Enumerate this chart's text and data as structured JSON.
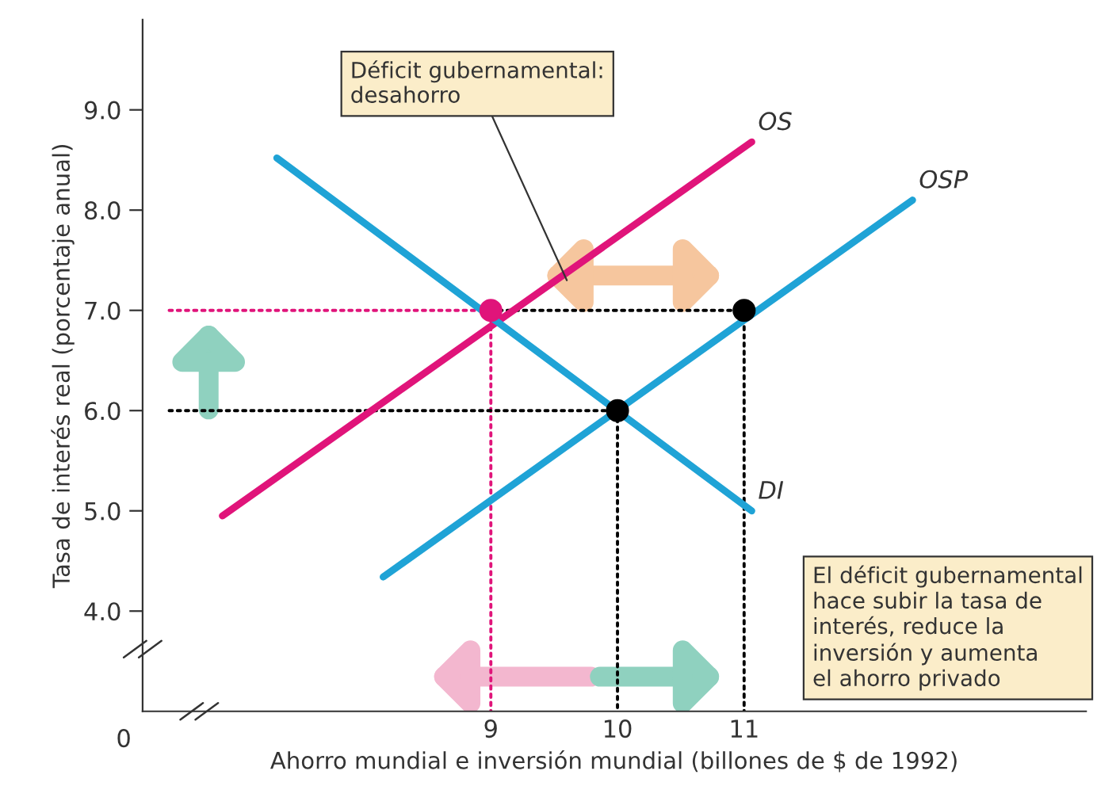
{
  "chart_data": {
    "type": "line",
    "xlabel": "Ahorro mundial e inversión mundial (billones de $ de 1992)",
    "ylabel": "Tasa de interés real (porcentaje anual)",
    "xlim": [
      6.25,
      13.7
    ],
    "ylim": [
      3.0,
      9.9
    ],
    "xticks": [
      9,
      10,
      11
    ],
    "yticks": [
      {
        "value": 4,
        "label": "4.0"
      },
      {
        "value": 5,
        "label": "5.0"
      },
      {
        "value": 6,
        "label": "6.0"
      },
      {
        "value": 7,
        "label": "7.0"
      },
      {
        "value": 8,
        "label": "8.0"
      },
      {
        "value": 9,
        "label": "9.0"
      }
    ],
    "grid": false,
    "marker": "none",
    "line_style": "solid",
    "series": [
      {
        "name": "OS",
        "color": "#e0147a",
        "x": [
          6.88,
          11.06
        ],
        "values": [
          4.95,
          8.68
        ]
      },
      {
        "name": "OSP",
        "color": "#1fa3d6",
        "x": [
          8.15,
          12.33
        ],
        "values": [
          4.34,
          8.1
        ]
      },
      {
        "name": "DI",
        "color": "#1fa3d6",
        "x": [
          7.31,
          11.06
        ],
        "values": [
          8.52,
          5.0
        ]
      },
      {
        "type": "line",
        "line_style": "dotted",
        "color": "#e0147a",
        "x": [
          6.46,
          9
        ],
        "values": [
          7,
          7
        ]
      },
      {
        "type": "line",
        "line_style": "dotted",
        "color": "#e0147a",
        "x": [
          9,
          9
        ],
        "values": [
          7,
          3.0
        ]
      },
      {
        "type": "line",
        "line_style": "dotted",
        "color": "#000000",
        "x": [
          9,
          11
        ],
        "values": [
          7,
          7
        ]
      },
      {
        "type": "line",
        "line_style": "dotted",
        "color": "#000000",
        "x": [
          6.46,
          10
        ],
        "values": [
          6,
          6
        ]
      },
      {
        "type": "line",
        "line_style": "dotted",
        "color": "#000000",
        "x": [
          10,
          10
        ],
        "values": [
          6,
          3.0
        ]
      },
      {
        "type": "line",
        "line_style": "dotted",
        "color": "#000000",
        "x": [
          11,
          11
        ],
        "values": [
          7,
          3.0
        ]
      },
      {
        "type": "scatter",
        "marker": "circle",
        "color": "#e0147a",
        "x": [
          9
        ],
        "values": [
          7
        ]
      },
      {
        "type": "scatter",
        "marker": "circle",
        "color": "#000000",
        "x": [
          10,
          11
        ],
        "values": [
          6,
          7
        ]
      }
    ],
    "annotations": [
      "0",
      {
        "text": "Déficit gubernamental:\ndesahorro",
        "x": 9.6,
        "y": 7.3
      },
      "El déficit gubernamental\nhace subir la tasa de\ninterés, reduce la\ninversión y aumenta\nel ahorro privado"
    ]
  }
}
